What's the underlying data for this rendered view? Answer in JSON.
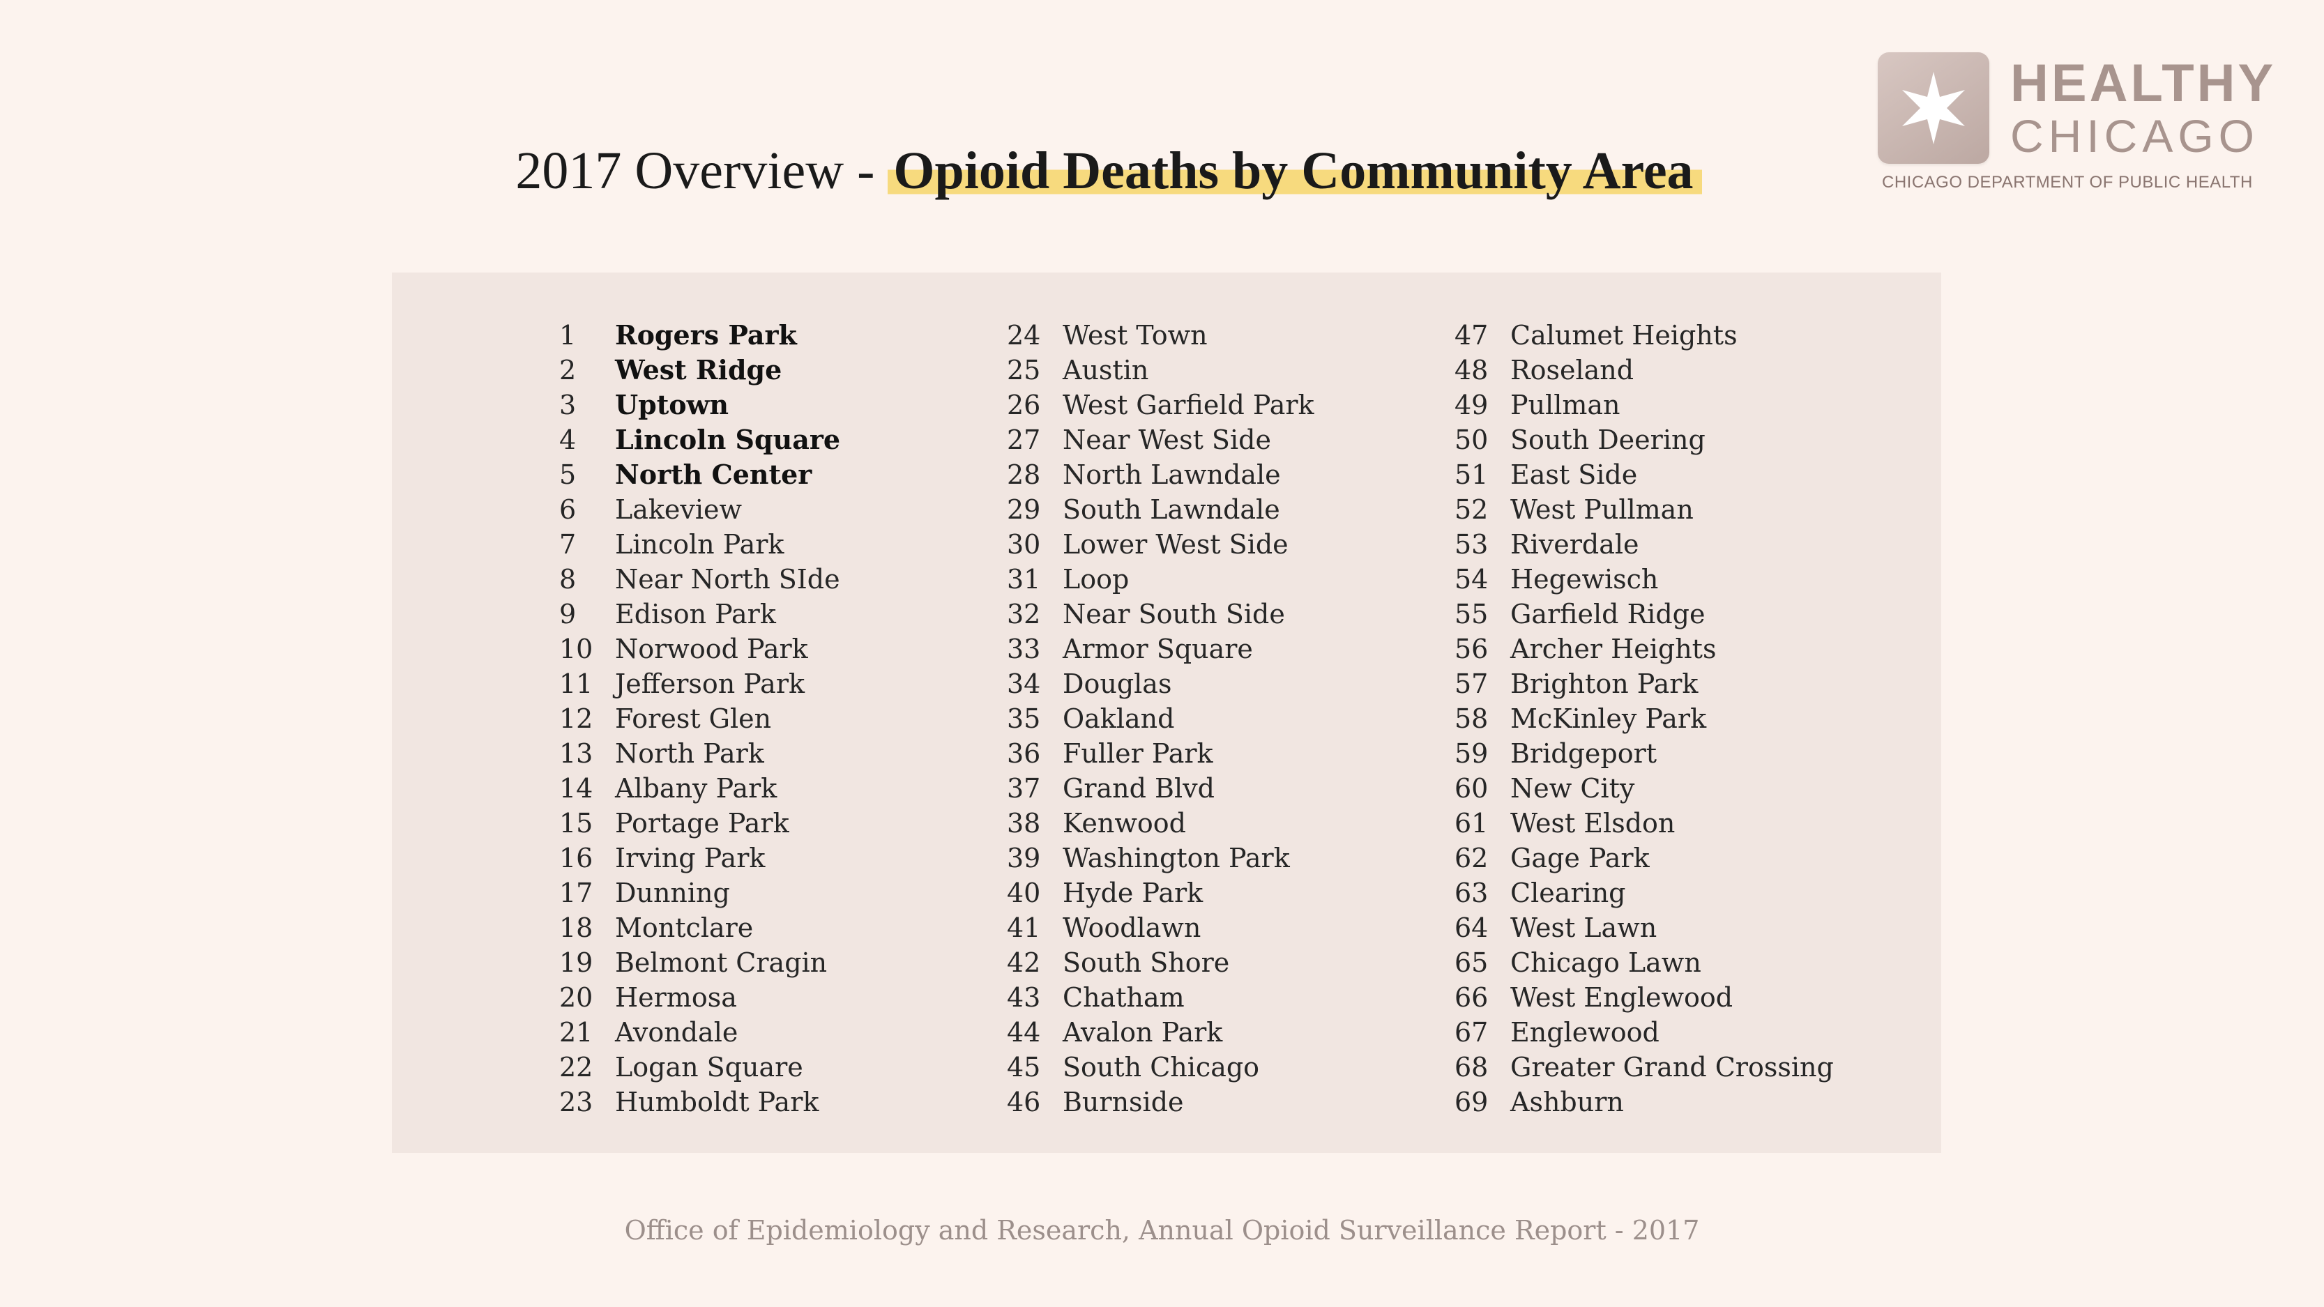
{
  "title": {
    "prefix": "2017 Overview - ",
    "highlight": "Opioid Deaths by Community Area",
    "highlight_color": "#f7da7e"
  },
  "logo": {
    "icon": "star-icon",
    "healthy": "HEALTHY",
    "chicago": "CHICAGO",
    "dept": "CHICAGO DEPARTMENT OF PUBLIC HEALTH"
  },
  "columns": [
    [
      {
        "num": "1",
        "name": "Rogers Park",
        "bold": true
      },
      {
        "num": "2",
        "name": "West Ridge",
        "bold": true
      },
      {
        "num": "3",
        "name": "Uptown",
        "bold": true
      },
      {
        "num": "4",
        "name": "Lincoln Square",
        "bold": true
      },
      {
        "num": "5",
        "name": "North Center",
        "bold": true
      },
      {
        "num": "6",
        "name": "Lakeview",
        "bold": false
      },
      {
        "num": "7",
        "name": "Lincoln Park",
        "bold": false
      },
      {
        "num": "8",
        "name": "Near North SIde",
        "bold": false
      },
      {
        "num": "9",
        "name": "Edison Park",
        "bold": false
      },
      {
        "num": "10",
        "name": "Norwood Park",
        "bold": false
      },
      {
        "num": "11",
        "name": "Jefferson Park",
        "bold": false
      },
      {
        "num": "12",
        "name": "Forest Glen",
        "bold": false
      },
      {
        "num": "13",
        "name": "North Park",
        "bold": false
      },
      {
        "num": "14",
        "name": "Albany Park",
        "bold": false
      },
      {
        "num": "15",
        "name": "Portage Park",
        "bold": false
      },
      {
        "num": "16",
        "name": "Irving Park",
        "bold": false
      },
      {
        "num": "17",
        "name": "Dunning",
        "bold": false
      },
      {
        "num": "18",
        "name": "Montclare",
        "bold": false
      },
      {
        "num": "19",
        "name": "Belmont Cragin",
        "bold": false
      },
      {
        "num": "20",
        "name": "Hermosa",
        "bold": false
      },
      {
        "num": "21",
        "name": "Avondale",
        "bold": false
      },
      {
        "num": "22",
        "name": "Logan Square",
        "bold": false
      },
      {
        "num": "23",
        "name": "Humboldt Park",
        "bold": false
      }
    ],
    [
      {
        "num": "24",
        "name": "West Town",
        "bold": false
      },
      {
        "num": "25",
        "name": "Austin",
        "bold": false
      },
      {
        "num": "26",
        "name": "West Garfield Park",
        "bold": false
      },
      {
        "num": "27",
        "name": "Near West Side",
        "bold": false
      },
      {
        "num": "28",
        "name": "North Lawndale",
        "bold": false
      },
      {
        "num": "29",
        "name": "South Lawndale",
        "bold": false
      },
      {
        "num": "30",
        "name": "Lower West Side",
        "bold": false
      },
      {
        "num": "31",
        "name": "Loop",
        "bold": false
      },
      {
        "num": "32",
        "name": "Near South Side",
        "bold": false
      },
      {
        "num": "33",
        "name": "Armor Square",
        "bold": false
      },
      {
        "num": "34",
        "name": "Douglas",
        "bold": false
      },
      {
        "num": "35",
        "name": "Oakland",
        "bold": false
      },
      {
        "num": "36",
        "name": "Fuller Park",
        "bold": false
      },
      {
        "num": "37",
        "name": "Grand Blvd",
        "bold": false
      },
      {
        "num": "38",
        "name": "Kenwood",
        "bold": false
      },
      {
        "num": "39",
        "name": "Washington Park",
        "bold": false
      },
      {
        "num": "40",
        "name": "Hyde Park",
        "bold": false
      },
      {
        "num": "41",
        "name": "Woodlawn",
        "bold": false
      },
      {
        "num": "42",
        "name": "South Shore",
        "bold": false
      },
      {
        "num": "43",
        "name": "Chatham",
        "bold": false
      },
      {
        "num": "44",
        "name": "Avalon Park",
        "bold": false
      },
      {
        "num": "45",
        "name": "South Chicago",
        "bold": false
      },
      {
        "num": "46",
        "name": "Burnside",
        "bold": false
      }
    ],
    [
      {
        "num": "47",
        "name": "Calumet Heights",
        "bold": false
      },
      {
        "num": "48",
        "name": "Roseland",
        "bold": false
      },
      {
        "num": "49",
        "name": "Pullman",
        "bold": false
      },
      {
        "num": "50",
        "name": "South Deering",
        "bold": false
      },
      {
        "num": "51",
        "name": "East Side",
        "bold": false
      },
      {
        "num": "52",
        "name": "West Pullman",
        "bold": false
      },
      {
        "num": "53",
        "name": "Riverdale",
        "bold": false
      },
      {
        "num": "54",
        "name": "Hegewisch",
        "bold": false
      },
      {
        "num": "55",
        "name": "Garfield Ridge",
        "bold": false
      },
      {
        "num": "56",
        "name": "Archer Heights",
        "bold": false
      },
      {
        "num": "57",
        "name": "Brighton Park",
        "bold": false
      },
      {
        "num": "58",
        "name": "McKinley Park",
        "bold": false
      },
      {
        "num": "59",
        "name": "Bridgeport",
        "bold": false
      },
      {
        "num": "60",
        "name": "New City",
        "bold": false
      },
      {
        "num": "61",
        "name": "West Elsdon",
        "bold": false
      },
      {
        "num": "62",
        "name": "Gage Park",
        "bold": false
      },
      {
        "num": "63",
        "name": "Clearing",
        "bold": false
      },
      {
        "num": "64",
        "name": "West Lawn",
        "bold": false
      },
      {
        "num": "65",
        "name": "Chicago Lawn",
        "bold": false
      },
      {
        "num": "66",
        "name": "West Englewood",
        "bold": false
      },
      {
        "num": "67",
        "name": "Englewood",
        "bold": false
      },
      {
        "num": "68",
        "name": "Greater Grand Crossing",
        "bold": false
      },
      {
        "num": "69",
        "name": "Ashburn",
        "bold": false
      }
    ]
  ],
  "footer": "Office of Epidemiology and Research, Annual Opioid Surveillance Report - 2017"
}
